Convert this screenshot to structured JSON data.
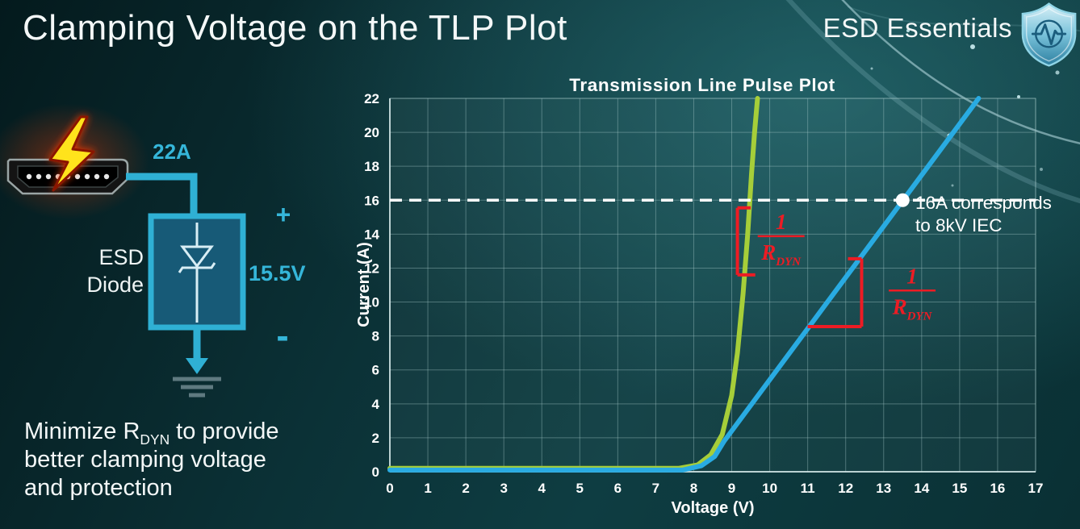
{
  "slide": {
    "title": "Clamping Voltage on the TLP Plot",
    "brand": "ESD Essentials"
  },
  "diagram": {
    "surge_current_label": "22A",
    "clamp_voltage_label": "15.5V",
    "plus_label": "+",
    "minus_label": "-",
    "component_label_line1": "ESD",
    "component_label_line2": "Diode"
  },
  "footnote": {
    "line1_prefix": "Minimize R",
    "line1_sub": "DYN",
    "line1_suffix": " to provide",
    "line2": "better clamping voltage",
    "line3": "and protection"
  },
  "colors": {
    "background_dark": "#07262b",
    "background_glow": "#2a7c82",
    "accent_cyan": "#35b6d9",
    "curve_green": "#a6ce39",
    "curve_blue": "#29abe2",
    "annotation_red": "#ed1c24",
    "reference_white": "#ffffff"
  },
  "chart_data": {
    "type": "line",
    "title": "Transmission Line Pulse Plot",
    "xlabel": "Voltage (V)",
    "ylabel": "Current (A)",
    "xlim": [
      0,
      17
    ],
    "ylim": [
      0,
      22
    ],
    "x_ticks": [
      0,
      1,
      2,
      3,
      4,
      5,
      6,
      7,
      8,
      9,
      10,
      11,
      12,
      13,
      14,
      15,
      16,
      17
    ],
    "y_ticks": [
      0,
      2,
      4,
      6,
      8,
      10,
      12,
      14,
      16,
      18,
      20,
      22
    ],
    "grid": true,
    "legend": false,
    "series": [
      {
        "name": "green-curve-low-rdyn",
        "color": "#a6ce39",
        "points": [
          [
            0,
            0.2
          ],
          [
            7.6,
            0.2
          ],
          [
            8.1,
            0.4
          ],
          [
            8.45,
            1.0
          ],
          [
            8.75,
            2.2
          ],
          [
            9.0,
            4.5
          ],
          [
            9.15,
            7.0
          ],
          [
            9.3,
            10.5
          ],
          [
            9.42,
            14.0
          ],
          [
            9.52,
            17.5
          ],
          [
            9.6,
            20.0
          ],
          [
            9.68,
            22.0
          ]
        ]
      },
      {
        "name": "blue-curve-high-rdyn",
        "color": "#29abe2",
        "points": [
          [
            0,
            0.1
          ],
          [
            7.7,
            0.1
          ],
          [
            8.2,
            0.35
          ],
          [
            8.55,
            0.9
          ],
          [
            8.8,
            1.8
          ],
          [
            15.5,
            22.0
          ]
        ]
      }
    ],
    "reference_line": {
      "y": 16,
      "color": "#ffffff",
      "style": "dashed"
    },
    "marker": {
      "x": 13.5,
      "y": 16,
      "label_line1": "16A corresponds",
      "label_line2": "to 8kV IEC"
    },
    "annotations": [
      {
        "name": "rdyn-slope-green",
        "color": "#ed1c24",
        "segments": [
          [
            9.15,
            11.6,
            9.15,
            15.55
          ],
          [
            9.15,
            15.55,
            9.5,
            15.55
          ],
          [
            9.15,
            11.6,
            9.62,
            11.6
          ]
        ],
        "fraction": {
          "numerator": "1",
          "den_base": "R",
          "den_sub": "DYN",
          "x": 10.3,
          "num_y": 14.3,
          "bar_y": 13.88,
          "den_y": 12.5
        }
      },
      {
        "name": "rdyn-slope-blue",
        "color": "#ed1c24",
        "segments": [
          [
            12.42,
            8.55,
            12.42,
            12.55
          ],
          [
            12.42,
            12.55,
            12.06,
            12.55
          ],
          [
            11.0,
            8.55,
            12.42,
            8.55
          ]
        ],
        "fraction": {
          "numerator": "1",
          "den_base": "R",
          "den_sub": "DYN",
          "x": 13.75,
          "num_y": 11.1,
          "bar_y": 10.68,
          "den_y": 9.3
        }
      }
    ]
  }
}
